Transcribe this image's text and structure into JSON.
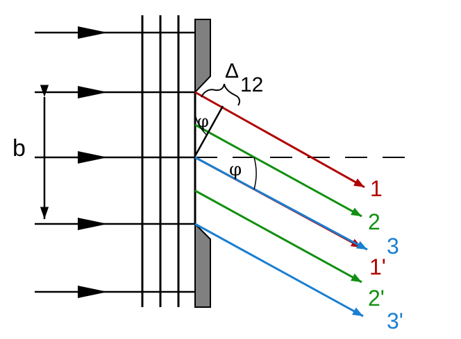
{
  "labels": {
    "b": "b",
    "delta_symbol": "Δ",
    "delta_subscript": "12",
    "phi_top": "φ",
    "phi_mid": "φ",
    "ray_1": "1",
    "ray_2": "2",
    "ray_3": "3",
    "ray_1p": "1'",
    "ray_2p": "2'",
    "ray_3p": "3'"
  },
  "colors": {
    "ink": "#000000",
    "slit_screen": "#808080",
    "ray_red": "#b00000",
    "ray_green": "#119011",
    "ray_blue": "#1a7fd0"
  }
}
